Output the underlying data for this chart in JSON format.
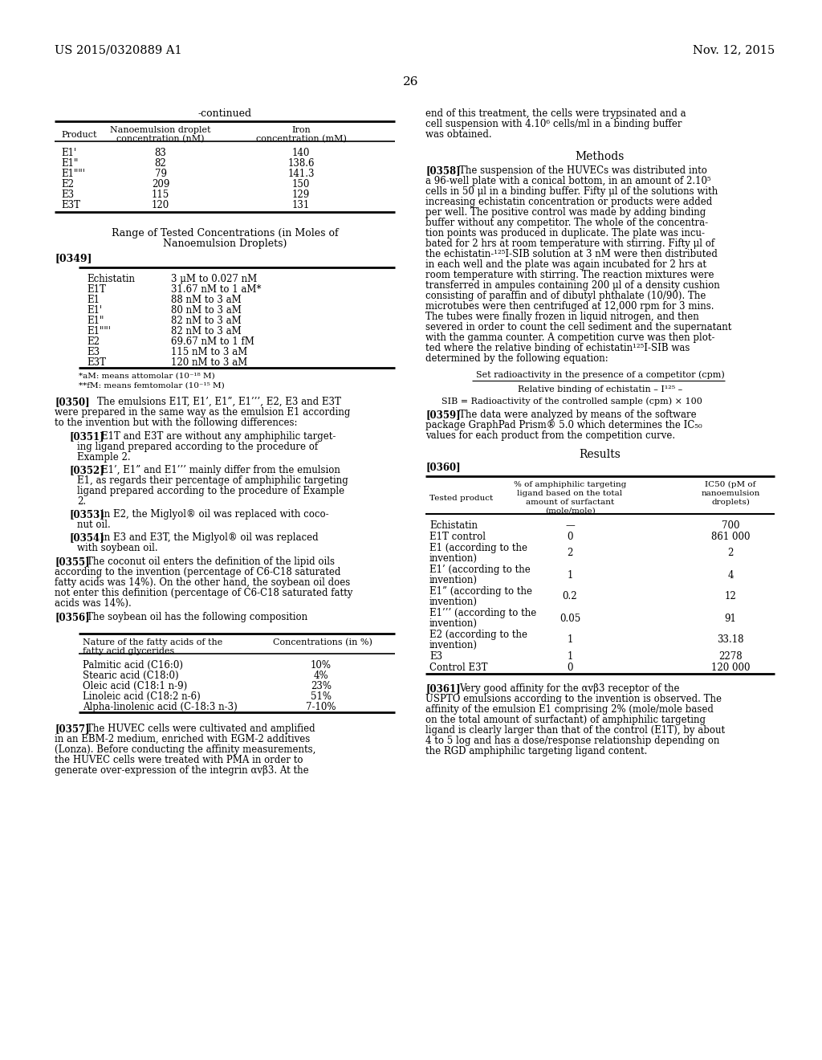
{
  "background_color": "#ffffff",
  "page_number": "26",
  "header_left": "US 2015/0320889 A1",
  "header_right": "Nov. 12, 2015",
  "table1_title": "-continued",
  "table1_rows": [
    [
      "E1'",
      "83",
      "140"
    ],
    [
      "E1\"",
      "82",
      "138.6"
    ],
    [
      "E1\"\"'",
      "79",
      "141.3"
    ],
    [
      "E2",
      "209",
      "150"
    ],
    [
      "E3",
      "115",
      "129"
    ],
    [
      "E3T",
      "120",
      "131"
    ]
  ],
  "table2_rows": [
    [
      "Echistatin",
      "3 μM to 0.027 nM"
    ],
    [
      "E1T",
      "31.67 nM to 1 aM*"
    ],
    [
      "E1",
      "88 nM to 3 aM"
    ],
    [
      "E1'",
      "80 nM to 3 aM"
    ],
    [
      "E1\"",
      "82 nM to 3 aM"
    ],
    [
      "E1\"\"'",
      "82 nM to 3 aM"
    ],
    [
      "E2",
      "69.67 nM to 1 fM"
    ],
    [
      "E3",
      "115 nM to 3 aM"
    ],
    [
      "E3T",
      "120 nM to 3 aM"
    ]
  ],
  "table2_footnote1": "*aM: means attomolar (10⁻¹⁸ M)",
  "table2_footnote2": "**fM: means femtomolar (10⁻¹⁵ M)",
  "para350_text": "The emulsions E1T, E1’, E1”, E1’’’, E2, E3 and E3T were prepared in the same way as the emulsion E1 according to the invention but with the following differences:",
  "para351_text": "E1T and E3T are without any amphiphilic target-ing ligand prepared according to the procedure of Example 2.",
  "para352_text": "E1’, E1” and E1’’’ mainly differ from the emulsion E1, as regards their percentage of amphiphilic targeting ligand prepared according to the procedure of Example 2.",
  "para353_text": "in E2, the Miglyol® oil was replaced with coco-nut oil.",
  "para354_text": "in E3 and E3T, the Miglyol® oil was replaced with soybean oil.",
  "para355_text": "The coconut oil enters the definition of the lipid oils according to the invention (percentage of C6-C18 saturated fatty acids was 14%). On the other hand, the soybean oil does not enter this definition (percentage of C6-C18 saturated fatty acids was 14%).",
  "para356_text": "The soybean oil has the following composition",
  "table3_rows": [
    [
      "Palmitic acid (C16:0)",
      "10%"
    ],
    [
      "Stearic acid (C18:0)",
      "4%"
    ],
    [
      "Oleic acid (C18:1 n-9)",
      "23%"
    ],
    [
      "Linoleic acid (C18:2 n-6)",
      "51%"
    ],
    [
      "Alpha-linolenic acid (C-18:3 n-3)",
      "7-10%"
    ]
  ],
  "para357_text": "The HUVEC cells were cultivated and amplified in an EBM-2 medium, enriched with EGM-2 additives (Lonza). Before conducting the affinity measurements, the HUVEC cells were treated with PMA in order to generate over-expression of the integrin αvβ3. At the",
  "right_col_text1": "end of this treatment, the cells were trypsinated and a cell suspension with 4.10⁶ cells/ml in a binding buffer was obtained.",
  "para358_text": "The suspension of the HUVECs was distributed into a 96-well plate with a conical bottom, in an amount of 2.10⁵ cells in 50 μl in a binding buffer. Fifty μl of the solutions with increasing echistatin concentration or products were added per well. The positive control was made by adding binding buffer without any competitor. The whole of the concentra-tion points was produced in duplicate. The plate was incu-bated for 2 hrs at room temperature with stirring. Fifty μl of the echistatin-¹²⁵I-SIB solution at 3 nM were then distributed in each well and the plate was again incubated for 2 hrs at room temperature with stirring. The reaction mixtures were transferred in ampules containing 200 μl of a density cushion consisting of paraffin and of dibutyl phthalate (10/90). The microtubes were then centrifuged at 12,000 rpm for 3 mins. The tubes were finally frozen in liquid nitrogen, and then severed in order to count the cell sediment and the supernatant with the gamma counter. A competition curve was then plot-ted where the relative binding of echistatin¹²⁵I-SIB was determined by the following equation:",
  "formula_numerator": "Set radioactivity in the presence of a competitor (cpm)",
  "formula_denominator": "Relative binding of echistatin – I¹²⁵ –",
  "formula_footer": "SIB = Radioactivity of the controlled sample (cpm) × 100",
  "para359_text": "The data were analyzed by means of the software package GraphPad Prism® 5.0 which determines the IC₅₀ values for each product from the competition curve.",
  "table4_rows": [
    [
      "Echistatin",
      "—",
      "700"
    ],
    [
      "E1T control",
      "0",
      "861 000"
    ],
    [
      "E1 (according to the\ninvention)",
      "2",
      "2"
    ],
    [
      "E1’ (according to the\ninvention)",
      "1",
      "4"
    ],
    [
      "E1” (according to the\ninvention)",
      "0.2",
      "12"
    ],
    [
      "E1’’’ (according to the\ninvention)",
      "0.05",
      "91"
    ],
    [
      "E2 (according to the\ninvention)",
      "1",
      "33.18"
    ],
    [
      "E3",
      "1",
      "2278"
    ],
    [
      "Control E3T",
      "0",
      "120 000"
    ]
  ],
  "para361_text": "Very good affinity for the αvβ3 receptor of the USPTO emulsions according to the invention is observed. The affinity of the emulsion E1 comprising 2% (mole/mole based on the total amount of surfactant) of amphiphilic targeting ligand is clearly larger than that of the control (E1T), by about 4 to 5 log and has a dose/response relationship depending on the RGD amphiphilic targeting ligand content."
}
